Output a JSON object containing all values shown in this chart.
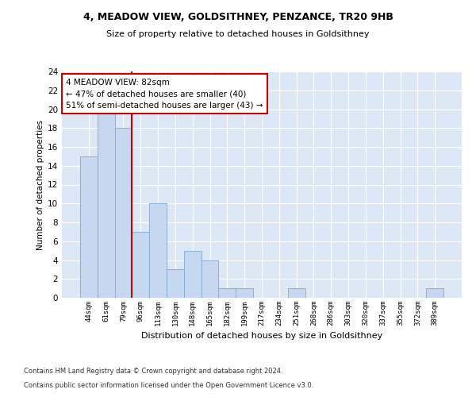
{
  "title1": "4, MEADOW VIEW, GOLDSITHNEY, PENZANCE, TR20 9HB",
  "title2": "Size of property relative to detached houses in Goldsithney",
  "xlabel": "Distribution of detached houses by size in Goldsithney",
  "ylabel": "Number of detached properties",
  "bin_labels": [
    "44sqm",
    "61sqm",
    "79sqm",
    "96sqm",
    "113sqm",
    "130sqm",
    "148sqm",
    "165sqm",
    "182sqm",
    "199sqm",
    "217sqm",
    "234sqm",
    "251sqm",
    "268sqm",
    "286sqm",
    "303sqm",
    "320sqm",
    "337sqm",
    "355sqm",
    "372sqm",
    "389sqm"
  ],
  "bar_heights": [
    15,
    20,
    18,
    7,
    10,
    3,
    5,
    4,
    1,
    1,
    0,
    0,
    1,
    0,
    0,
    0,
    0,
    0,
    0,
    0,
    1
  ],
  "bar_color": "#c5d8f0",
  "bar_edge_color": "#7aabcf",
  "vline_color": "#cc0000",
  "annotation_text": "4 MEADOW VIEW: 82sqm\n← 47% of detached houses are smaller (40)\n51% of semi-detached houses are larger (43) →",
  "annotation_box_color": "#ffffff",
  "annotation_box_edge": "#cc0000",
  "ylim": [
    0,
    24
  ],
  "yticks": [
    0,
    2,
    4,
    6,
    8,
    10,
    12,
    14,
    16,
    18,
    20,
    22,
    24
  ],
  "footer1": "Contains HM Land Registry data © Crown copyright and database right 2024.",
  "footer2": "Contains public sector information licensed under the Open Government Licence v3.0.",
  "plot_bg_color": "#dce8f5"
}
